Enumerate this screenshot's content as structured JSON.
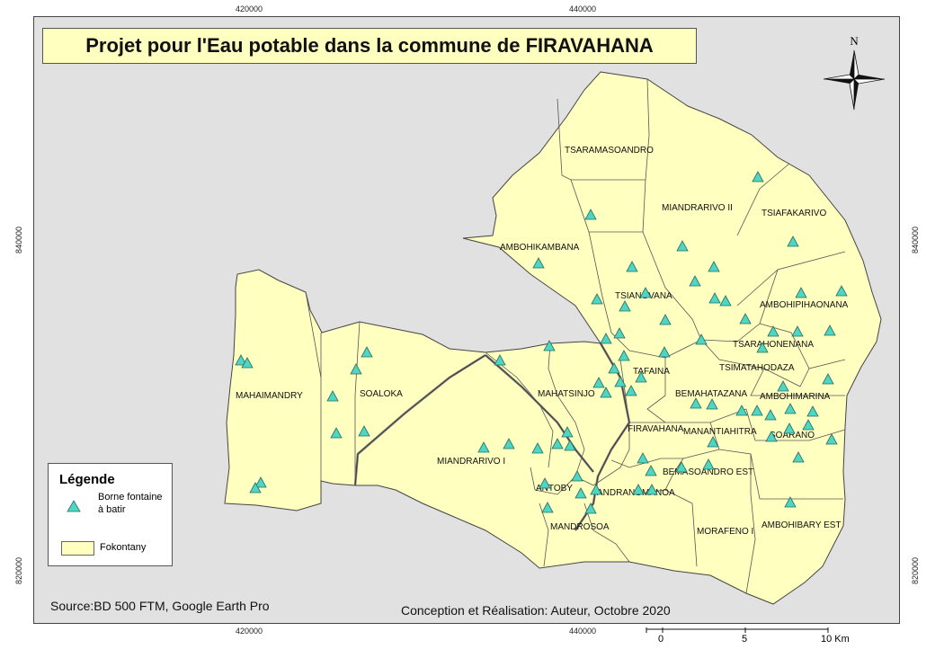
{
  "map": {
    "title": "Projet pour l'Eau potable dans la commune de FIRAVAHANA",
    "north_label": "N",
    "grid": {
      "top_ticks": [
        "420000",
        "440000"
      ],
      "bottom_ticks": [
        "420000",
        "440000"
      ],
      "left_ticks": [
        "840000",
        "820000"
      ],
      "right_ticks": [
        "840000",
        "820000"
      ]
    },
    "legend": {
      "heading": "Légende",
      "point_label": "Borne fontaine\n à batir",
      "area_label": "Fokontany"
    },
    "source": "Source:BD 500 FTM, Google Earth Pro",
    "credit": "Conception et Réalisation: Auteur, Octobre 2020",
    "scale": {
      "labels": [
        "0",
        "5",
        "10 Km"
      ]
    },
    "colors": {
      "area_fill": "#ffffc0",
      "marker_fill": "#4fd6c2",
      "background": "#e1e1e1"
    },
    "fokontany": [
      "TSARAMASOANDRO",
      "MIANDRARIVO II",
      "TSIAFAKARIVO",
      "AMBOHIKAMBANA",
      "TSIANOVANA",
      "AMBOHIPIHAONANA",
      "TSARAHONENANA",
      "TSIMATAHODAZA",
      "TAFAINA",
      "MAHAIMANDRY",
      "SOALOKA",
      "MAHATSINJO",
      "BEMAHATAZANA",
      "AMBOHIMARINA",
      "FIRAVAHANA",
      "MANANTIAHITRA",
      "SOARANO",
      "MIANDRARIVO I",
      "BEMASOANDRO EST",
      "ANTOBY",
      "ANDRANOMANOA",
      "MANDROSOA",
      "MORAFENO I",
      "AMBOHIBARY EST"
    ]
  }
}
